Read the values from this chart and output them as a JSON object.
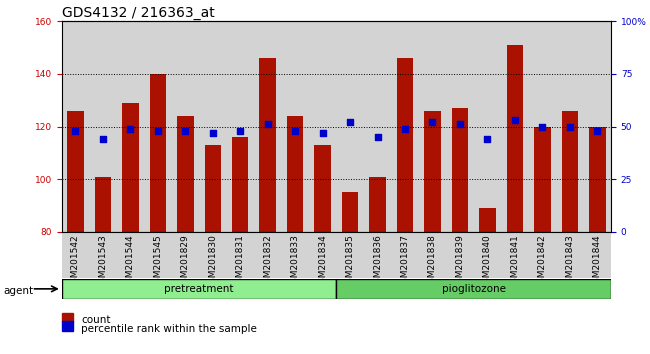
{
  "title": "GDS4132 / 216363_at",
  "samples": [
    "GSM201542",
    "GSM201543",
    "GSM201544",
    "GSM201545",
    "GSM201829",
    "GSM201830",
    "GSM201831",
    "GSM201832",
    "GSM201833",
    "GSM201834",
    "GSM201835",
    "GSM201836",
    "GSM201837",
    "GSM201838",
    "GSM201839",
    "GSM201840",
    "GSM201841",
    "GSM201842",
    "GSM201843",
    "GSM201844"
  ],
  "counts": [
    126,
    101,
    129,
    140,
    124,
    113,
    116,
    146,
    124,
    113,
    95,
    101,
    146,
    126,
    127,
    89,
    151,
    120,
    126,
    120
  ],
  "percentiles": [
    48,
    44,
    49,
    48,
    48,
    47,
    48,
    51,
    48,
    47,
    52,
    45,
    49,
    52,
    51,
    44,
    53,
    50,
    50,
    48
  ],
  "pretreatment_count": 10,
  "pioglitozone_count": 10,
  "group_labels": [
    "pretreatment",
    "pioglitozone"
  ],
  "group_colors": [
    "#90EE90",
    "#66CC66"
  ],
  "bar_color": "#AA1100",
  "dot_color": "#0000CC",
  "ylim_left": [
    80,
    160
  ],
  "ylim_right": [
    0,
    100
  ],
  "yticks_left": [
    80,
    100,
    120,
    140,
    160
  ],
  "yticks_right": [
    0,
    25,
    50,
    75,
    100
  ],
  "ytick_labels_right": [
    "0",
    "25",
    "50",
    "75",
    "100%"
  ],
  "bg_color": "#D3D3D3",
  "bar_width": 0.6,
  "title_fontsize": 10,
  "tick_fontsize": 6.5,
  "legend_count_label": "count",
  "legend_pct_label": "percentile rank within the sample",
  "agent_label": "agent",
  "axis_color_left": "#CC0000",
  "axis_color_right": "#0000CC",
  "dot_size": 18
}
